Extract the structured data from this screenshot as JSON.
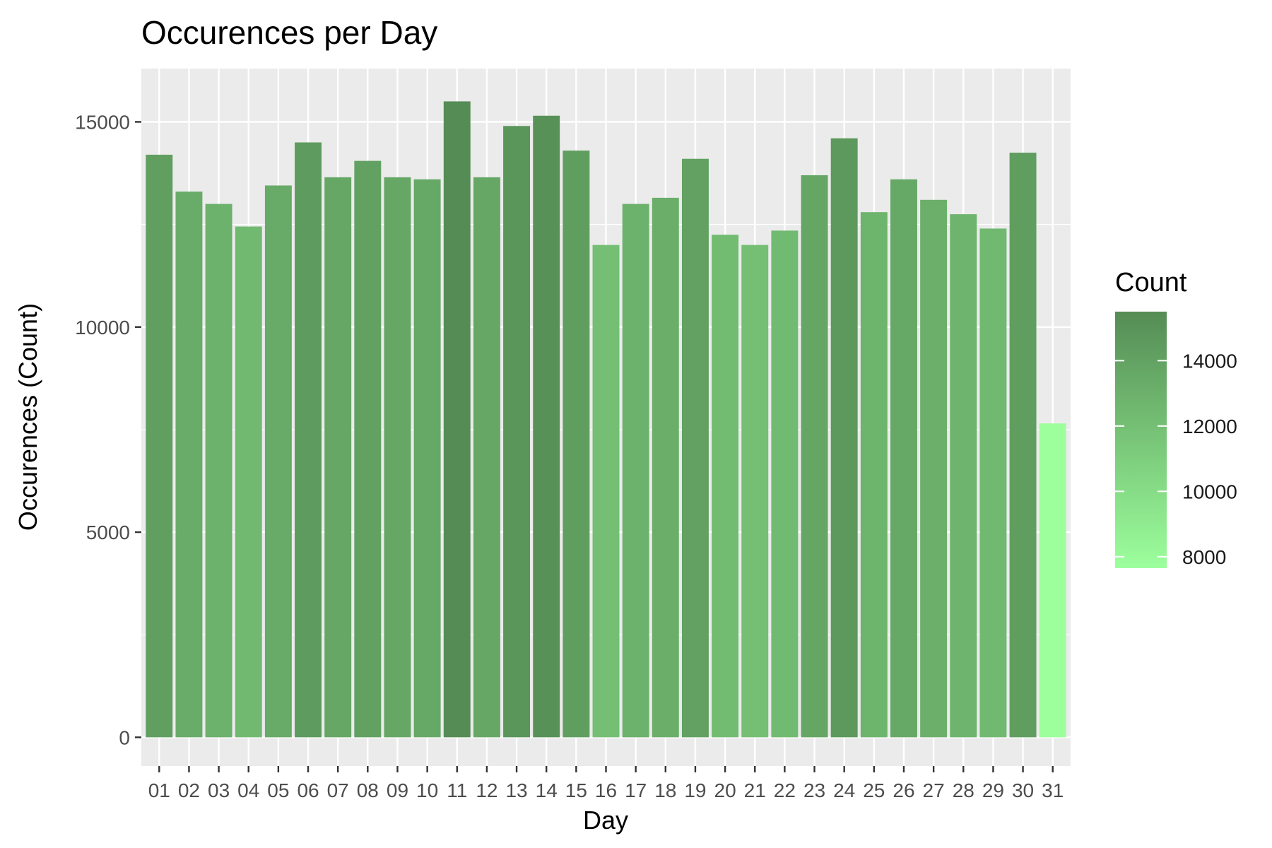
{
  "chart_data": {
    "type": "bar",
    "title": "Occurences per Day",
    "xlabel": "Day",
    "ylabel": "Occurences (Count)",
    "categories": [
      "01",
      "02",
      "03",
      "04",
      "05",
      "06",
      "07",
      "08",
      "09",
      "10",
      "11",
      "12",
      "13",
      "14",
      "15",
      "16",
      "17",
      "18",
      "19",
      "20",
      "21",
      "22",
      "23",
      "24",
      "25",
      "26",
      "27",
      "28",
      "29",
      "30",
      "31"
    ],
    "values": [
      14200,
      13300,
      13000,
      12450,
      13450,
      14500,
      13650,
      14050,
      13650,
      13600,
      15500,
      13650,
      14900,
      15150,
      14300,
      12000,
      13000,
      13150,
      14100,
      12250,
      12000,
      12350,
      13700,
      14600,
      12800,
      13600,
      13100,
      12750,
      12400,
      14250,
      7650
    ],
    "ylim": [
      -700,
      16300
    ],
    "yticks": [
      0,
      5000,
      10000,
      15000
    ],
    "grid": true,
    "legend": {
      "title": "Count",
      "placement": "right",
      "ticks": [
        8000,
        10000,
        12000,
        14000
      ],
      "range": [
        7650,
        15500
      ],
      "color_low": "#9cff9c",
      "color_high": "#558c55"
    },
    "colors": {
      "panel_background": "#ebebeb",
      "grid": "#ffffff"
    }
  }
}
